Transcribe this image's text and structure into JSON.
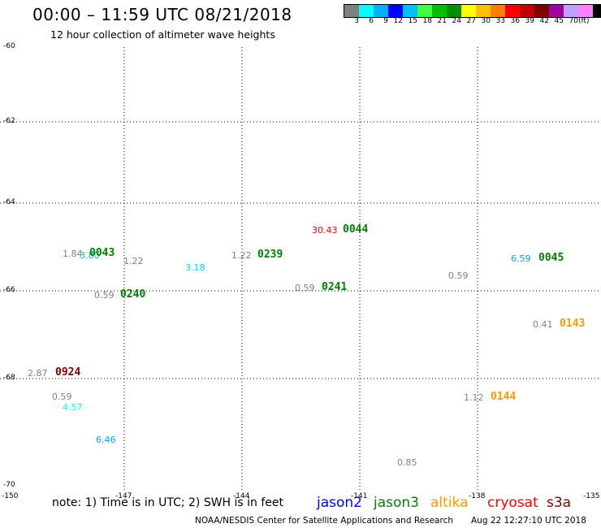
{
  "header": {
    "title": "00:00 – 11:59 UTC 08/21/2018",
    "subtitle": "12 hour collection of altimeter wave heights"
  },
  "color_scale": {
    "colors": [
      "#808080",
      "#00ffff",
      "#00b0ff",
      "#0000ff",
      "#00c0ff",
      "#40ff40",
      "#00c000",
      "#009000",
      "#ffff00",
      "#ffc000",
      "#ff8000",
      "#ff0000",
      "#c00000",
      "#800000",
      "#a000a0",
      "#c0a0ff",
      "#ff80ff",
      "#000000"
    ],
    "labels": [
      "3",
      "6",
      "9",
      "12",
      "15",
      "18",
      "21",
      "24",
      "27",
      "30",
      "33",
      "36",
      "39",
      "42",
      "45",
      "70"
    ],
    "unit": "(ft)"
  },
  "axes": {
    "y_ticks": [
      "-60",
      "-62",
      "-64",
      "-66",
      "-68",
      "-70"
    ],
    "x_ticks": [
      "-150",
      "-147",
      "-144",
      "-141",
      "-138",
      "-135"
    ]
  },
  "observations": [
    {
      "text": "1.84",
      "color": "#808080"
    },
    {
      "text": "3.80",
      "color": "#00c0c0"
    },
    {
      "text": "1.22",
      "color": "#808080"
    },
    {
      "text": "3.18",
      "color": "#00d0ff"
    },
    {
      "text": "1.22",
      "color": "#808080"
    },
    {
      "text": "30.43",
      "color": "#ff0000"
    },
    {
      "text": "0.59",
      "color": "#808080"
    },
    {
      "text": "0.59",
      "color": "#808080"
    },
    {
      "text": "0.59",
      "color": "#808080"
    },
    {
      "text": "6.59",
      "color": "#00a0ff"
    },
    {
      "text": "0.41",
      "color": "#808080"
    },
    {
      "text": "2.87",
      "color": "#808080"
    },
    {
      "text": "0.59",
      "color": "#808080"
    },
    {
      "text": "4.57",
      "color": "#00ffff"
    },
    {
      "text": "6.46",
      "color": "#00a0ff"
    },
    {
      "text": "1.12",
      "color": "#808080"
    },
    {
      "text": "0.85",
      "color": "#808080"
    }
  ],
  "pass_times": [
    {
      "text": "0043",
      "color": "#008000"
    },
    {
      "text": "0239",
      "color": "#008000"
    },
    {
      "text": "0044",
      "color": "#008000"
    },
    {
      "text": "0240",
      "color": "#008000"
    },
    {
      "text": "0241",
      "color": "#008000"
    },
    {
      "text": "0045",
      "color": "#008000"
    },
    {
      "text": "0143",
      "color": "#ff9900"
    },
    {
      "text": "0924",
      "color": "#800000"
    },
    {
      "text": "0144",
      "color": "#ff9900"
    }
  ],
  "footer": {
    "note": "note: 1) Time is in UTC; 2) SWH is in feet",
    "satellites": [
      {
        "name": "jason2",
        "color": "#0000ff"
      },
      {
        "name": "jason3",
        "color": "#008000"
      },
      {
        "name": "altika",
        "color": "#ff9900"
      },
      {
        "name": "cryosat",
        "color": "#ff0000"
      },
      {
        "name": "s3a",
        "color": "#800000"
      }
    ],
    "credit": "NOAA/NESDIS Center for Satellite Applications and Research",
    "timestamp": "Aug 22 12:27:10 UTC 2018"
  }
}
